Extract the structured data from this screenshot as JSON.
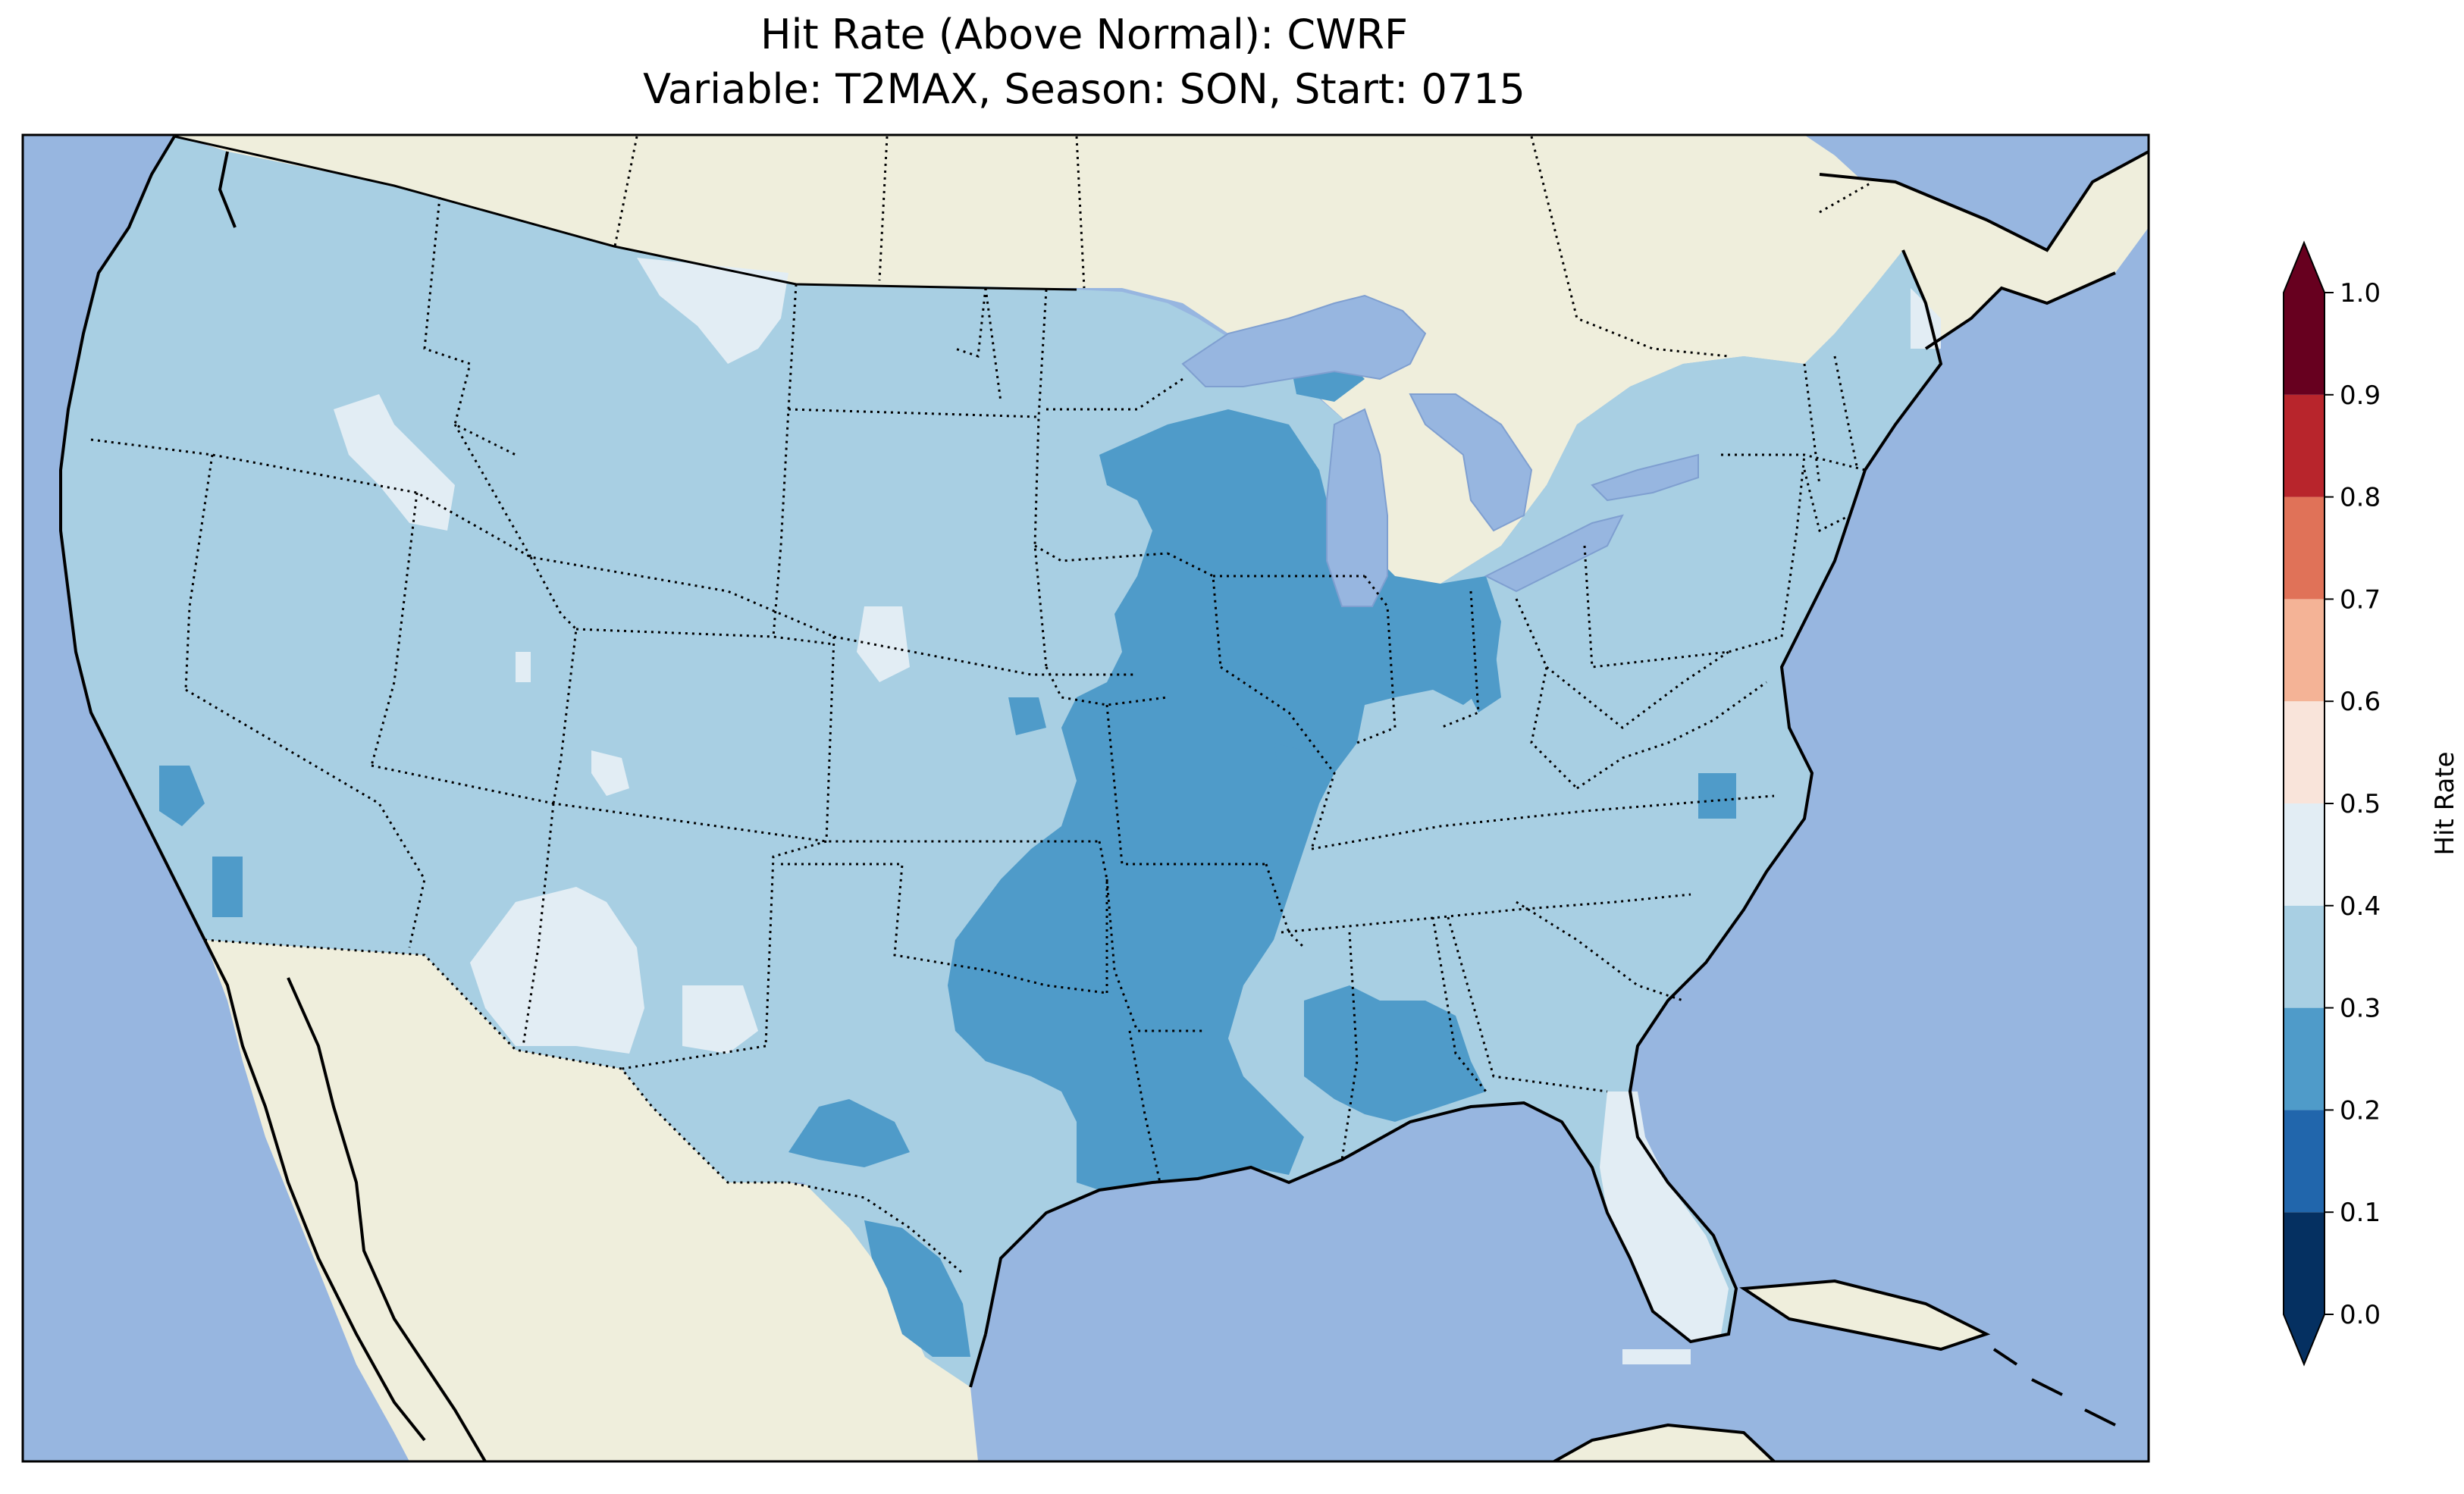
{
  "title": {
    "line1": "Hit Rate (Above Normal): CWRF",
    "line2": "Variable: T2MAX, Season: SON, Start: 0715"
  },
  "colorbar": {
    "label": "Hit Rate",
    "ticks": [
      "0.0",
      "0.1",
      "0.2",
      "0.3",
      "0.4",
      "0.5",
      "0.6",
      "0.7",
      "0.8",
      "0.9",
      "1.0"
    ],
    "bins": [
      {
        "range": [
          0.0,
          0.1
        ],
        "color": "#053061"
      },
      {
        "range": [
          0.1,
          0.2
        ],
        "color": "#2166ac"
      },
      {
        "range": [
          0.2,
          0.3
        ],
        "color": "#4f9bc9"
      },
      {
        "range": [
          0.3,
          0.4
        ],
        "color": "#a8cfe3"
      },
      {
        "range": [
          0.4,
          0.5
        ],
        "color": "#e2edf4"
      },
      {
        "range": [
          0.5,
          0.6
        ],
        "color": "#f9e4da"
      },
      {
        "range": [
          0.6,
          0.7
        ],
        "color": "#f4b396"
      },
      {
        "range": [
          0.7,
          0.8
        ],
        "color": "#e07258"
      },
      {
        "range": [
          0.8,
          0.9
        ],
        "color": "#b8252c"
      },
      {
        "range": [
          0.9,
          1.0
        ],
        "color": "#67001f"
      }
    ],
    "extend": "both"
  },
  "map": {
    "ocean_color": "#97b6e0",
    "land_color": "#efeedc",
    "region": "Contiguous United States",
    "dominant_class": "0.3-0.4",
    "lower_class_regions": [
      "Mississippi Valley",
      "Great Lakes",
      "South Texas",
      "Alabama / Mississippi"
    ],
    "higher_class_regions": [
      "Montana",
      "Idaho",
      "New Mexico / Arizona",
      "Florida",
      "Nebraska"
    ]
  }
}
